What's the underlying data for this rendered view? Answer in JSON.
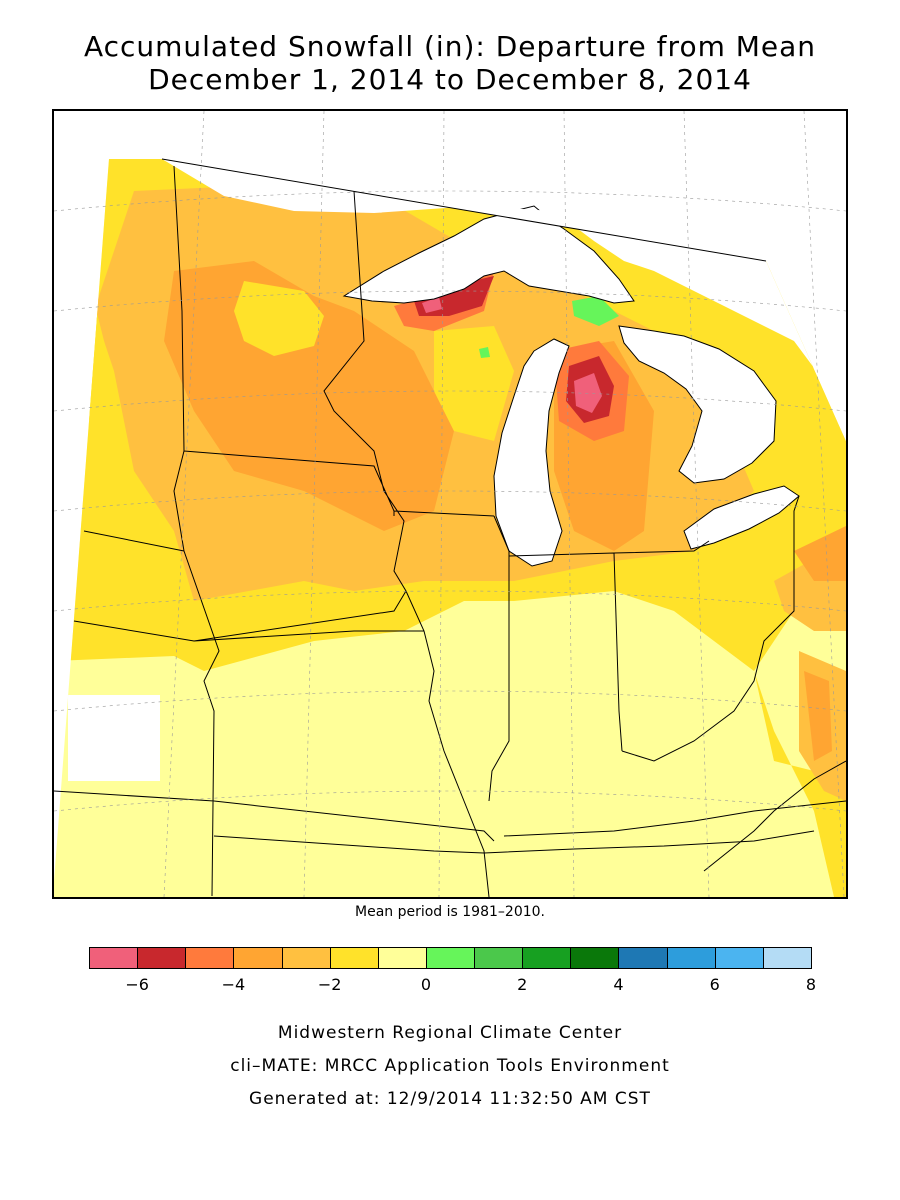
{
  "title_line1": "Accumulated Snowfall (in): Departure from Mean",
  "title_line2": "December 1, 2014 to December 8, 2014",
  "mean_period": "Mean period is 1981–2010.",
  "legend": {
    "colors": [
      "#f0607a",
      "#c8282d",
      "#ff7a3c",
      "#ffa532",
      "#ffc040",
      "#ffe22a",
      "#ffff99",
      "#66f55a",
      "#4bc84b",
      "#17a021",
      "#0a780a",
      "#1e78b4",
      "#2d9ddc",
      "#4bb4f0",
      "#b4dcf5"
    ],
    "ticks": [
      "−6",
      "−4",
      "−2",
      "0",
      "2",
      "4",
      "6",
      "8"
    ]
  },
  "footer": {
    "line1": "Midwestern Regional Climate Center",
    "line2": "cli–MATE: MRCC Application Tools Environment",
    "line3": "Generated at: 12/9/2014 11:32:50 AM CST"
  },
  "map": {
    "region": "Upper Midwest / Great Lakes",
    "shading": "snowfall departure from mean (in)",
    "colors": {
      "water": "#ffffff",
      "missing": "#ffffff",
      "departure_0_to_minus1": "#ffff99",
      "departure_minus1_to_minus2": "#ffe22a",
      "departure_minus2_to_minus3": "#ffc040",
      "departure_minus3_to_minus4": "#ffa532",
      "departure_minus4_to_minus5": "#ff7a3c",
      "departure_minus5_to_minus6": "#c8282d",
      "departure_below_minus6": "#f0607a",
      "departure_0_to_1": "#66f55a"
    }
  }
}
